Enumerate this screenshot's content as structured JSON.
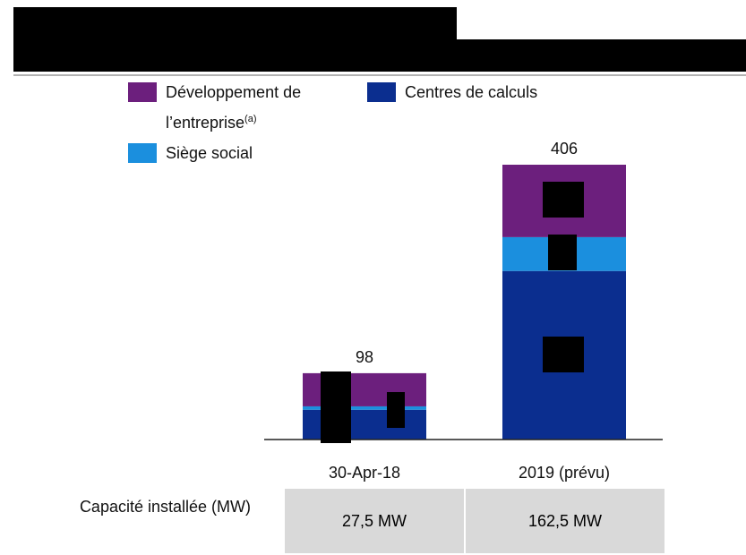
{
  "chart_data": {
    "type": "stacked_bar",
    "categories": [
      "30-Apr-18",
      "2019 (prévu)"
    ],
    "series": [
      {
        "name": "Centres de calculs",
        "color": "#0b2e8f",
        "values": [
          44,
          249
        ]
      },
      {
        "name": "Siège social",
        "color": "#1b8fde",
        "values": [
          5,
          50
        ]
      },
      {
        "name": "Développement de l’entreprise",
        "name_note": "(a)",
        "color": "#6c1f7d",
        "values": [
          49,
          107
        ]
      }
    ],
    "totals": [
      98,
      406
    ],
    "table": {
      "label": "Capacité installée (MW)",
      "cells": [
        "27,5 MW",
        "162,5 MW"
      ]
    }
  }
}
